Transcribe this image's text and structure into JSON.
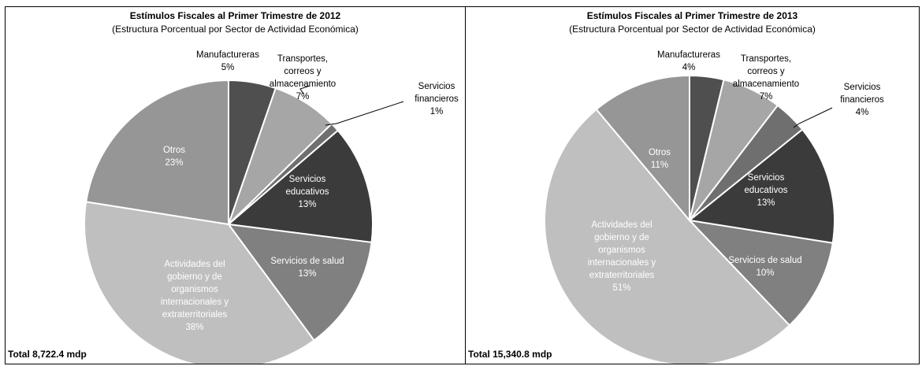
{
  "colors": {
    "manufactureras": "#4f4f4f",
    "transportes": "#a6a6a6",
    "financieros": "#6f6f6f",
    "educativos": "#3b3b3b",
    "salud": "#808080",
    "gobierno": "#bfbfbf",
    "otros": "#969696",
    "dark_label": "#000000",
    "light_label": "#ffffff"
  },
  "chart_data": [
    {
      "type": "pie",
      "title": "Estímulos Fiscales al Primer Trimestre de 2012",
      "subtitle": "(Estructura Porcentual por Sector de Actividad Económica)",
      "total_label": "Total 8,722.4 mdp",
      "slices": [
        {
          "key": "manufactureras",
          "label_lines": [
            "Manufactureras"
          ],
          "pct_label": "5%",
          "value": 5.3
        },
        {
          "key": "transportes",
          "label_lines": [
            "Transportes,",
            "correos y",
            "almacenamiento"
          ],
          "pct_label": "7%",
          "value": 7.4
        },
        {
          "key": "financieros",
          "label_lines": [
            "Servicios",
            "financieros"
          ],
          "pct_label": "1%",
          "value": 1.0
        },
        {
          "key": "educativos",
          "label_lines": [
            "Servicios",
            "educativos"
          ],
          "pct_label": "13%",
          "value": 13.3
        },
        {
          "key": "salud",
          "label_lines": [
            "Servicios de salud"
          ],
          "pct_label": "13%",
          "value": 12.9
        },
        {
          "key": "gobierno",
          "label_lines": [
            "Actividades del",
            "gobierno y de",
            "organismos",
            "internacionales y",
            "extraterritoriales"
          ],
          "pct_label": "38%",
          "value": 37.6
        },
        {
          "key": "otros",
          "label_lines": [
            "Otros"
          ],
          "pct_label": "23%",
          "value": 22.5
        }
      ]
    },
    {
      "type": "pie",
      "title": "Estímulos Fiscales al Primer Trimestre de 2013",
      "subtitle": "(Estructura Porcentual por Sector de Actividad Económica)",
      "total_label": "Total 15,340.8 mdp",
      "slices": [
        {
          "key": "manufactureras",
          "label_lines": [
            "Manufactureras"
          ],
          "pct_label": "4%",
          "value": 3.8
        },
        {
          "key": "transportes",
          "label_lines": [
            "Transportes,",
            "correos y",
            "almacenamiento"
          ],
          "pct_label": "7%",
          "value": 6.6
        },
        {
          "key": "financieros",
          "label_lines": [
            "Servicios",
            "financieros"
          ],
          "pct_label": "4%",
          "value": 3.8
        },
        {
          "key": "educativos",
          "label_lines": [
            "Servicios",
            "educativos"
          ],
          "pct_label": "13%",
          "value": 13.3
        },
        {
          "key": "salud",
          "label_lines": [
            "Servicios de salud"
          ],
          "pct_label": "10%",
          "value": 10.4
        },
        {
          "key": "gobierno",
          "label_lines": [
            "Actividades del",
            "gobierno y de",
            "organismos",
            "internacionales y",
            "extraterritoriales"
          ],
          "pct_label": "51%",
          "value": 51.0
        },
        {
          "key": "otros",
          "label_lines": [
            "Otros"
          ],
          "pct_label": "11%",
          "value": 11.1
        }
      ]
    }
  ]
}
